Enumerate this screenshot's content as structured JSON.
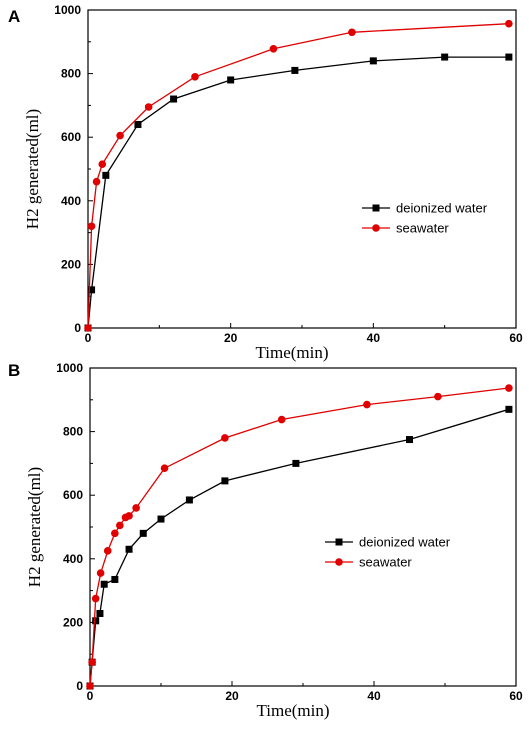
{
  "chart_data": [
    {
      "type": "line",
      "panel_label": "A",
      "xlabel": "Time(min)",
      "ylabel": "H2 generated(ml)",
      "xlim": [
        0,
        60
      ],
      "ylim": [
        0,
        1000
      ],
      "xticks": [
        0,
        20,
        40,
        60
      ],
      "yticks": [
        0,
        200,
        400,
        600,
        800,
        1000
      ],
      "legend_position": "center-right",
      "series": [
        {
          "name": "deionized water",
          "color": "#000000",
          "marker": "square",
          "x": [
            0,
            0.5,
            2.5,
            7,
            12,
            20,
            29,
            40,
            50,
            59
          ],
          "y": [
            0,
            120,
            480,
            640,
            720,
            780,
            810,
            840,
            852,
            852
          ]
        },
        {
          "name": "seawater",
          "color": "#e00000",
          "marker": "circle",
          "x": [
            0,
            0.5,
            1.2,
            2,
            4.5,
            8.5,
            15,
            26,
            37,
            59
          ],
          "y": [
            0,
            320,
            460,
            515,
            605,
            695,
            790,
            878,
            930,
            957
          ]
        }
      ]
    },
    {
      "type": "line",
      "panel_label": "B",
      "xlabel": "Time(min)",
      "ylabel": "H2 generated(ml)",
      "xlim": [
        0,
        60
      ],
      "ylim": [
        0,
        1000
      ],
      "xticks": [
        0,
        20,
        40,
        60
      ],
      "yticks": [
        0,
        200,
        400,
        600,
        800,
        1000
      ],
      "legend_position": "center-right",
      "series": [
        {
          "name": "deionized water",
          "color": "#000000",
          "marker": "square",
          "x": [
            0,
            0.3,
            0.8,
            1.4,
            2,
            3.5,
            5.5,
            7.5,
            10,
            14,
            19,
            29,
            45,
            59
          ],
          "y": [
            0,
            75,
            205,
            228,
            320,
            335,
            430,
            480,
            525,
            585,
            645,
            700,
            775,
            870
          ],
          "note_removed": true
        },
        {
          "name": "seawater",
          "color": "#e00000",
          "marker": "circle",
          "x": [
            0,
            0.3,
            0.8,
            1.5,
            2.5,
            3.5,
            4.2,
            5,
            5.5,
            6.5,
            10.5,
            19,
            27,
            39,
            49,
            59
          ],
          "y": [
            0,
            75,
            275,
            355,
            425,
            480,
            505,
            530,
            535,
            560,
            685,
            780,
            838,
            885,
            910,
            937
          ]
        }
      ]
    }
  ]
}
